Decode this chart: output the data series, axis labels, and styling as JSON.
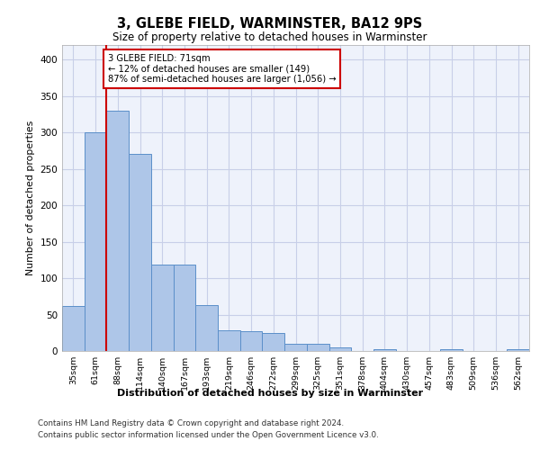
{
  "title": "3, GLEBE FIELD, WARMINSTER, BA12 9PS",
  "subtitle": "Size of property relative to detached houses in Warminster",
  "xlabel": "Distribution of detached houses by size in Warminster",
  "ylabel": "Number of detached properties",
  "categories": [
    "35sqm",
    "61sqm",
    "88sqm",
    "114sqm",
    "140sqm",
    "167sqm",
    "193sqm",
    "219sqm",
    "246sqm",
    "272sqm",
    "299sqm",
    "325sqm",
    "351sqm",
    "378sqm",
    "404sqm",
    "430sqm",
    "457sqm",
    "483sqm",
    "509sqm",
    "536sqm",
    "562sqm"
  ],
  "values": [
    62,
    300,
    330,
    270,
    119,
    119,
    63,
    29,
    27,
    25,
    10,
    10,
    5,
    0,
    2,
    0,
    0,
    3,
    0,
    0,
    2
  ],
  "bar_color": "#aec6e8",
  "bar_edge_color": "#5b8fc9",
  "annotation_text": "3 GLEBE FIELD: 71sqm\n← 12% of detached houses are smaller (149)\n87% of semi-detached houses are larger (1,056) →",
  "annotation_box_color": "#ffffff",
  "annotation_box_edge_color": "#cc0000",
  "property_line_color": "#cc0000",
  "ylim": [
    0,
    420
  ],
  "yticks": [
    0,
    50,
    100,
    150,
    200,
    250,
    300,
    350,
    400
  ],
  "footer_line1": "Contains HM Land Registry data © Crown copyright and database right 2024.",
  "footer_line2": "Contains public sector information licensed under the Open Government Licence v3.0.",
  "background_color": "#eef2fb",
  "grid_color": "#c8cfe8"
}
